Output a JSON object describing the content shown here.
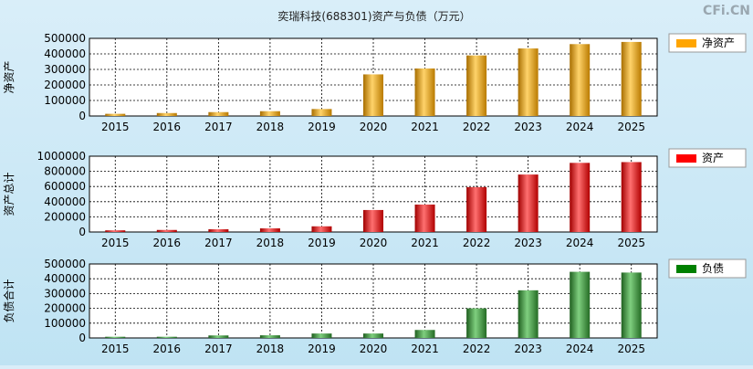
{
  "title": "奕瑞科技(688301)资产与负债（万元）",
  "watermark": "CFi.CN",
  "chart_data": [
    {
      "type": "bar",
      "ylabel": "净资产",
      "legend": "净资产",
      "legend_color": "#ffa500",
      "categories": [
        "2015",
        "2016",
        "2017",
        "2018",
        "2019",
        "2020",
        "2021",
        "2022",
        "2023",
        "2024",
        "2025"
      ],
      "values": [
        14000,
        19000,
        25000,
        31000,
        45000,
        268000,
        306000,
        390000,
        435000,
        463000,
        477000
      ],
      "ylim": [
        0,
        500000
      ],
      "yticks": [
        "500000",
        "400000",
        "300000",
        "200000",
        "100000",
        "0"
      ],
      "grid": true,
      "legend_position": "right"
    },
    {
      "type": "bar",
      "ylabel": "资产总计",
      "legend": "资产",
      "legend_color": "#ff0000",
      "categories": [
        "2015",
        "2016",
        "2017",
        "2018",
        "2019",
        "2020",
        "2021",
        "2022",
        "2023",
        "2024",
        "2025"
      ],
      "values": [
        22000,
        27000,
        36000,
        48000,
        75000,
        290000,
        362000,
        592000,
        758000,
        912000,
        922000
      ],
      "ylim": [
        0,
        1000000
      ],
      "yticks": [
        "1000000",
        "800000",
        "600000",
        "400000",
        "200000",
        "0"
      ],
      "grid": true,
      "legend_position": "right"
    },
    {
      "type": "bar",
      "ylabel": "负债合计",
      "legend": "负债",
      "legend_color": "#008000",
      "categories": [
        "2015",
        "2016",
        "2017",
        "2018",
        "2019",
        "2020",
        "2021",
        "2022",
        "2023",
        "2024",
        "2025"
      ],
      "values": [
        8000,
        8000,
        17000,
        18000,
        30000,
        30000,
        54000,
        200000,
        322000,
        447000,
        442000
      ],
      "ylim": [
        0,
        500000
      ],
      "yticks": [
        "500000",
        "400000",
        "300000",
        "200000",
        "100000",
        "0"
      ],
      "grid": true,
      "legend_position": "right"
    }
  ]
}
